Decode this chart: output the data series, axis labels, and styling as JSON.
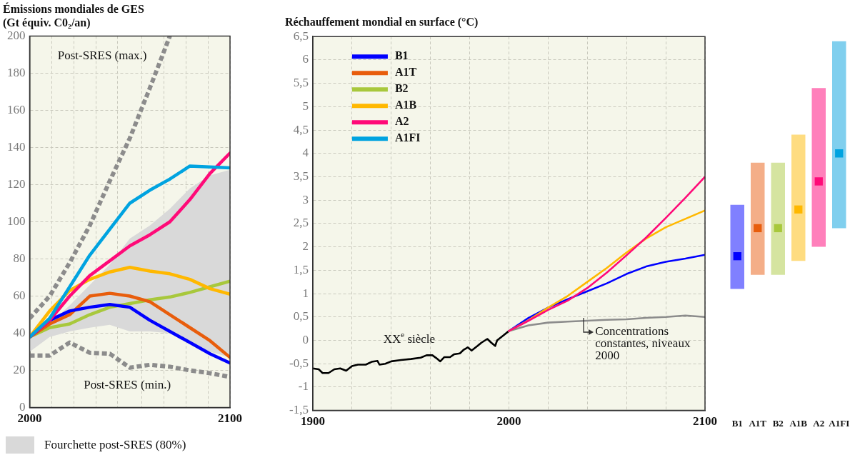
{
  "chart_data": [
    {
      "type": "line",
      "title": "Émissions mondiales de GES",
      "subtitle": "(Gt équiv. C0₂/an)",
      "x": [
        2000,
        2010,
        2020,
        2030,
        2040,
        2050,
        2060,
        2070,
        2080,
        2090,
        2100
      ],
      "xlim": [
        2000,
        2100
      ],
      "xticks": [
        2000,
        {
          "value": 2011,
          "label": null
        },
        {
          "value": 2022,
          "label": null
        },
        {
          "value": 2033,
          "label": null
        },
        {
          "value": 2044,
          "label": null
        },
        {
          "value": 2056,
          "label": null
        },
        {
          "value": 2067,
          "label": null
        },
        {
          "value": 2078,
          "label": null
        },
        {
          "value": 2089,
          "label": null
        },
        2100
      ],
      "ylim": [
        0,
        200
      ],
      "yticks": [
        0,
        20,
        40,
        60,
        80,
        100,
        120,
        140,
        160,
        180,
        200
      ],
      "grid": true,
      "legend": "bottom",
      "series": [
        {
          "name": "Fourchette post-SRES (80%)",
          "type": "area",
          "color": "#d9d9d9",
          "values": [
            null,
            null,
            null,
            null,
            null,
            null,
            null,
            null,
            null,
            null,
            null
          ],
          "lower": [
            30,
            38,
            41,
            43,
            44.5,
            41,
            41,
            40,
            35,
            30,
            27
          ],
          "upper": [
            38,
            45,
            55,
            66,
            77,
            91,
            98,
            107,
            118,
            125,
            128
          ]
        },
        {
          "color": "#8c8c8c",
          "line_style": "dashed",
          "x": [
            2000,
            2010,
            2020,
            2030,
            2040,
            2050,
            2060,
            2070
          ],
          "values": [
            48,
            60,
            78,
            98,
            122,
            145,
            172,
            200
          ]
        },
        {
          "color": "#8c8c8c",
          "line_style": "dashed",
          "values": [
            28,
            28,
            35,
            29.5,
            29,
            21.5,
            23,
            22,
            20,
            18.5,
            16.5
          ]
        },
        {
          "color": "#a8c83c",
          "values": [
            38,
            43,
            45,
            50,
            54,
            56,
            58,
            59.5,
            62,
            65,
            68
          ]
        },
        {
          "color": "#ffb800",
          "values": [
            38,
            52,
            63,
            69,
            73,
            75.5,
            73.5,
            72,
            69,
            64,
            61
          ]
        },
        {
          "color": "#e85d0c",
          "values": [
            38,
            45,
            50,
            60,
            61.5,
            60,
            57,
            50,
            43,
            36,
            27
          ]
        },
        {
          "color": "#0000ff",
          "values": [
            38,
            47,
            52,
            54,
            55.5,
            54,
            47,
            41,
            35,
            29,
            24
          ]
        },
        {
          "color": "#ff0a78",
          "values": [
            38,
            47,
            60,
            71,
            79,
            87,
            93,
            100,
            112,
            126,
            137
          ]
        },
        {
          "color": "#00a3e0",
          "values": [
            38,
            48,
            65,
            82,
            96,
            110,
            117,
            123,
            130,
            129.5,
            129
          ]
        }
      ],
      "annotations": [
        "Post-SRES (max.)",
        "Post-SRES (min.)"
      ]
    },
    {
      "type": "line",
      "title": "Réchauffement mondial en surface (°C)",
      "x": [
        2000,
        2010,
        2020,
        2030,
        2040,
        2050,
        2060,
        2070,
        2080,
        2090,
        2100
      ],
      "xlim": [
        1900,
        2100
      ],
      "xticks": [
        1900,
        {
          "value": 1920,
          "label": null
        },
        {
          "value": 1940,
          "label": null
        },
        {
          "value": 1960,
          "label": null
        },
        {
          "value": 1980,
          "label": null
        },
        2000,
        {
          "value": 2020,
          "label": null
        },
        {
          "value": 2040,
          "label": null
        },
        {
          "value": 2060,
          "label": null
        },
        {
          "value": 2080,
          "label": null
        },
        2100
      ],
      "ylim": [
        -1.5,
        6.5
      ],
      "yticks": [
        {
          "value": -1.5,
          "label": "-1,5"
        },
        -1,
        {
          "value": -0.5,
          "label": "-0,5"
        },
        0,
        {
          "value": 0.5,
          "label": "0,5"
        },
        1,
        {
          "value": 1.5,
          "label": "1,5"
        },
        2,
        {
          "value": 2.5,
          "label": "2,5"
        },
        3,
        {
          "value": 3.5,
          "label": "3,5"
        },
        4,
        {
          "value": 4.5,
          "label": "4,5"
        },
        5,
        {
          "value": 5.5,
          "label": "5,5"
        },
        6,
        {
          "value": 6.5,
          "label": "6,5"
        }
      ],
      "grid": true,
      "legend": "top left",
      "series": [
        {
          "color": "#000000",
          "x": [
            1900,
            1903,
            1905,
            1908,
            1911,
            1914,
            1917,
            1920,
            1923,
            1927,
            1930,
            1933,
            1934,
            1937,
            1940,
            1945,
            1950,
            1955,
            1958,
            1961,
            1963,
            1965,
            1967,
            1970,
            1972,
            1975,
            1977,
            1979,
            1981,
            1984,
            1986,
            1989,
            1991,
            1993,
            1994,
            1997,
            2000
          ],
          "values": [
            -0.6,
            -0.62,
            -0.7,
            -0.7,
            -0.62,
            -0.6,
            -0.65,
            -0.55,
            -0.52,
            -0.52,
            -0.46,
            -0.44,
            -0.52,
            -0.5,
            -0.45,
            -0.42,
            -0.4,
            -0.37,
            -0.32,
            -0.32,
            -0.38,
            -0.45,
            -0.36,
            -0.36,
            -0.3,
            -0.28,
            -0.2,
            -0.15,
            -0.22,
            -0.12,
            -0.05,
            0.03,
            -0.05,
            -0.12,
            0,
            0.1,
            0.2
          ]
        },
        {
          "color": "#8c8c8c",
          "values": [
            0.2,
            0.32,
            0.38,
            0.4,
            0.42,
            0.44,
            0.45,
            0.48,
            0.5,
            0.53,
            0.5
          ]
        },
        {
          "name": "B1",
          "color": "#0000ff",
          "values": [
            0.2,
            0.48,
            0.7,
            0.88,
            1.05,
            1.22,
            1.42,
            1.58,
            1.68,
            1.75,
            1.83
          ]
        },
        {
          "name": "A1T",
          "color": "#e85d0c",
          "values": [
            null,
            null,
            null,
            null,
            null,
            null,
            null,
            null,
            null,
            null,
            null
          ]
        },
        {
          "name": "B2",
          "color": "#a8c83c",
          "values": [
            null,
            null,
            null,
            null,
            null,
            null,
            null,
            null,
            null,
            null,
            null
          ]
        },
        {
          "name": "A1B",
          "color": "#ffb800",
          "values": [
            0.2,
            0.43,
            0.7,
            0.95,
            1.25,
            1.55,
            1.88,
            2.18,
            2.42,
            2.6,
            2.78
          ]
        },
        {
          "name": "A2",
          "color": "#ff0a78",
          "values": [
            0.2,
            0.42,
            0.65,
            0.85,
            1.12,
            1.45,
            1.82,
            2.2,
            2.62,
            3.05,
            3.5
          ]
        },
        {
          "name": "A1FI",
          "color": "#00a3e0",
          "values": [
            null,
            null,
            null,
            null,
            null,
            null,
            null,
            null,
            null,
            null,
            null
          ]
        }
      ],
      "annotations": [
        "XX$^{e}$ siècle",
        "Concentrations constantes, niveaux 2000"
      ]
    },
    {
      "type": "bar",
      "categories": [
        "B1",
        "A1T",
        "B2",
        "A1B",
        "A2",
        "A1FI"
      ],
      "ylim": [
        -1.5,
        6.5
      ],
      "tick_labels": "x",
      "series": [
        {
          "type": "bar",
          "base": [
            1.1,
            1.4,
            1.4,
            1.7,
            2.0,
            2.4
          ],
          "values": [
            1.8,
            2.4,
            2.4,
            2.7,
            3.4,
            4.0
          ],
          "colors": [
            "#8080ff",
            "#f4ae88",
            "#d5e4a0",
            "#fedc80",
            "#ff80bb",
            "#80cfee"
          ]
        },
        {
          "type": "scatter",
          "marker": "square",
          "x": [
            "B1",
            "A1T",
            "B2",
            "A1B",
            "A2",
            "A1FI"
          ],
          "values": [
            1.8,
            2.4,
            2.4,
            2.8,
            3.4,
            4.0
          ],
          "colors": [
            "#0000ff",
            "#e85d0c",
            "#a8c83c",
            "#ffb800",
            "#ff0a78",
            "#00a3e0"
          ]
        }
      ]
    }
  ]
}
